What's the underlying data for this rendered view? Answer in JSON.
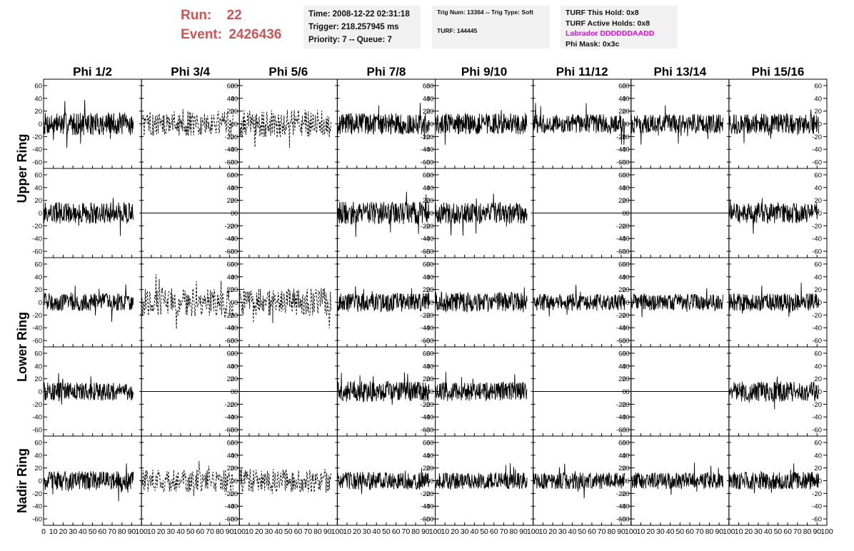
{
  "header": {
    "run_label": "Run:",
    "run_value": "22",
    "event_label": "Event:",
    "event_value": "2426436",
    "box1": {
      "time": "Time: 2008-12-22 02:31:18",
      "trigger": "Trigger: 218.257945 ms",
      "priority": "Priority: 7 -- Queue: 7"
    },
    "box2": {
      "trig": "Trig Num: 13364 -- Trig Type: Soft",
      "turf": "TURF: 144445"
    },
    "box3": {
      "hold": "TURF This Hold: 0x8",
      "active": "TURF Active Holds: 0x8",
      "labrador": "Labrador DDDDDDAADD",
      "mask": "Phi Mask: 0x3c"
    }
  },
  "colors": {
    "title": "#cc5555",
    "labrador": "#ee00ee",
    "trace": "#000000",
    "box": "#f1f1f1"
  },
  "chart_data": {
    "type": "line",
    "columns": [
      "Phi 1/2",
      "Phi 3/4",
      "Phi 5/6",
      "Phi 7/8",
      "Phi 9/10",
      "Phi 11/12",
      "Phi 13/14",
      "Phi 15/16"
    ],
    "ring_labels": [
      {
        "text": "Upper Ring",
        "rows": [
          0,
          1
        ]
      },
      {
        "text": "Lower Ring",
        "rows": [
          2,
          3
        ]
      },
      {
        "text": "Nadir Ring",
        "rows": [
          4
        ]
      }
    ],
    "xlim": [
      0,
      100
    ],
    "ylim": [
      -70,
      70
    ],
    "yticks": [
      -60,
      -40,
      -20,
      0,
      20,
      40,
      60
    ],
    "xticks": [
      0,
      10,
      20,
      30,
      40,
      50,
      60,
      70,
      80,
      90,
      100
    ],
    "panel_ytick_side": [
      "left",
      "right",
      "left",
      "right",
      "left",
      "right",
      "left",
      "right"
    ],
    "traces": [
      [
        {
          "style": "solid",
          "amp": 18,
          "end": 92
        },
        {
          "style": "dashed",
          "amp": 20,
          "end": 94
        },
        {
          "style": "dashed",
          "amp": 22,
          "end": 94
        },
        {
          "style": "solid",
          "amp": 17,
          "end": 94
        },
        {
          "style": "solid",
          "amp": 17,
          "end": 94
        },
        {
          "style": "solid",
          "amp": 15,
          "end": 94
        },
        {
          "style": "solid",
          "amp": 15,
          "end": 94
        },
        {
          "style": "solid",
          "amp": 16,
          "end": 92
        }
      ],
      [
        {
          "style": "solid",
          "amp": 17,
          "end": 92
        },
        {
          "style": "flat",
          "amp": 0,
          "end": 100
        },
        {
          "style": "flat",
          "amp": 0,
          "end": 100
        },
        {
          "style": "solid",
          "amp": 18,
          "end": 94
        },
        {
          "style": "solid",
          "amp": 17,
          "end": 94
        },
        {
          "style": "flat",
          "amp": 0,
          "end": 100
        },
        {
          "style": "flat",
          "amp": 0,
          "end": 100
        },
        {
          "style": "solid",
          "amp": 16,
          "end": 92
        }
      ],
      [
        {
          "style": "solid",
          "amp": 14,
          "end": 92
        },
        {
          "style": "dashed",
          "amp": 22,
          "end": 94
        },
        {
          "style": "dashed",
          "amp": 22,
          "end": 94
        },
        {
          "style": "solid",
          "amp": 15,
          "end": 94
        },
        {
          "style": "solid",
          "amp": 16,
          "end": 94
        },
        {
          "style": "solid",
          "amp": 13,
          "end": 94
        },
        {
          "style": "solid",
          "amp": 13,
          "end": 94
        },
        {
          "style": "solid",
          "amp": 14,
          "end": 92
        }
      ],
      [
        {
          "style": "solid",
          "amp": 14,
          "end": 92
        },
        {
          "style": "flat",
          "amp": 0,
          "end": 100
        },
        {
          "style": "flat",
          "amp": 0,
          "end": 100
        },
        {
          "style": "solid",
          "amp": 16,
          "end": 94
        },
        {
          "style": "solid",
          "amp": 15,
          "end": 94
        },
        {
          "style": "flat",
          "amp": 0,
          "end": 100
        },
        {
          "style": "flat",
          "amp": 0,
          "end": 100
        },
        {
          "style": "solid",
          "amp": 16,
          "end": 92
        }
      ],
      [
        {
          "style": "solid",
          "amp": 15,
          "end": 92
        },
        {
          "style": "dashed",
          "amp": 18,
          "end": 94
        },
        {
          "style": "dashed",
          "amp": 19,
          "end": 94
        },
        {
          "style": "solid",
          "amp": 14,
          "end": 94
        },
        {
          "style": "solid",
          "amp": 13,
          "end": 94
        },
        {
          "style": "solid",
          "amp": 13,
          "end": 94
        },
        {
          "style": "solid",
          "amp": 13,
          "end": 94
        },
        {
          "style": "solid",
          "amp": 14,
          "end": 92
        }
      ]
    ]
  }
}
